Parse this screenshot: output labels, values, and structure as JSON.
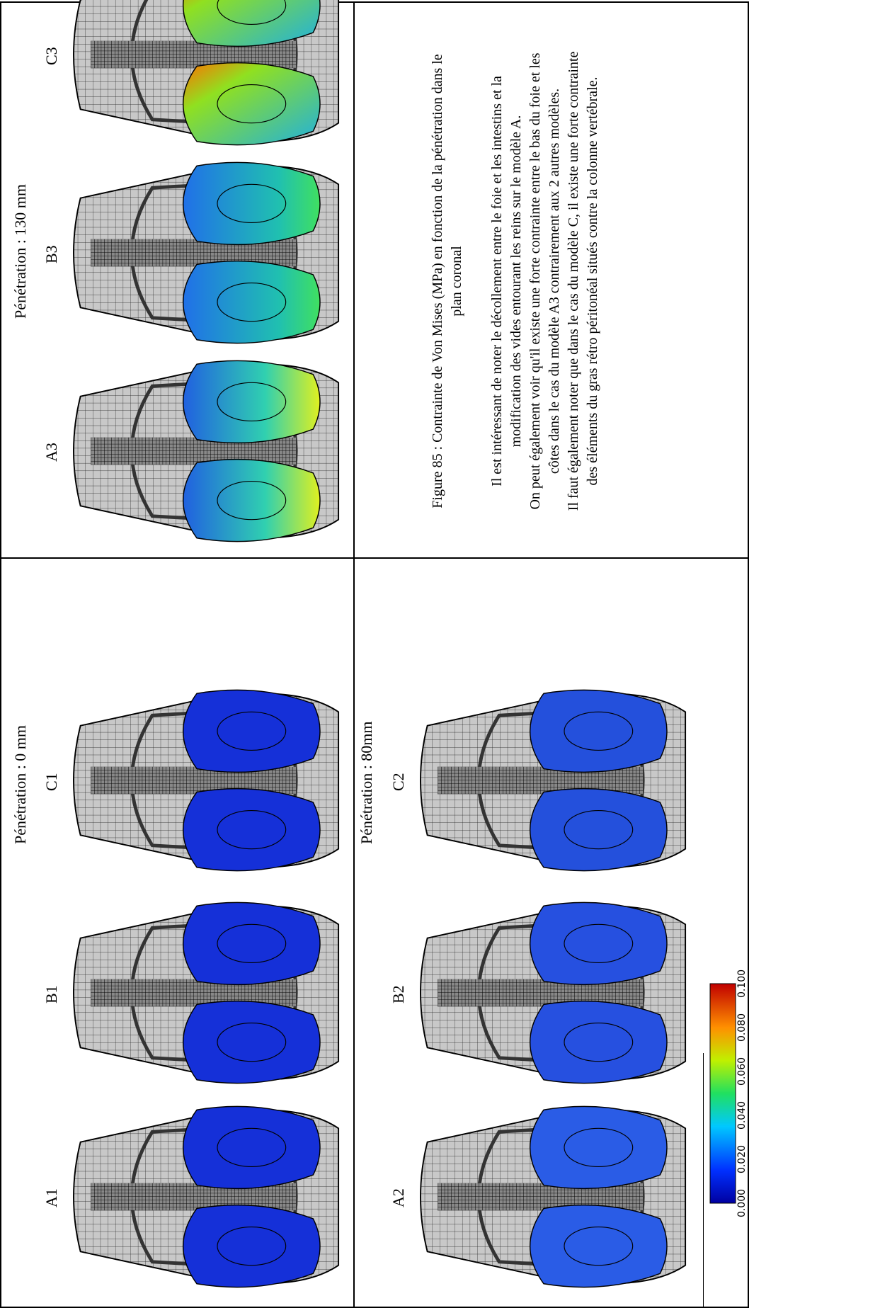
{
  "row1": {
    "title": "Pénétration : 0 mm",
    "labels": [
      "A1",
      "B1",
      "C1"
    ]
  },
  "row2": {
    "title": "Pénétration : 80mm",
    "labels": [
      "A2",
      "B2",
      "C2"
    ]
  },
  "row3": {
    "title": "Pénétration : 130 mm",
    "labels": [
      "A3",
      "B3",
      "C3"
    ]
  },
  "colorbar": {
    "ticks": [
      "0.000",
      "0.020",
      "0.040",
      "0.060",
      "0.080",
      "0.100"
    ]
  },
  "caption": {
    "title": "Figure 85 : Contrainte de Von Mises (MPa) en fonction de la pénétration dans le plan coronal",
    "paragraphs": [
      "Il est intéressant de noter le décollement entre le foie et les intestins et la modification des vides entourant les reins sur le modèle A.",
      "On peut également voir qu'il existe une forte contrainte entre le bas du foie et les côtes dans le cas du modèle A3 contrairement aux 2 autres modèles.",
      "Il faut également noter que dans le cas du modèle C, il existe une forte contrainte des éléments du gras rétro péritonéal situés contre la colonne vertébrale."
    ]
  }
}
